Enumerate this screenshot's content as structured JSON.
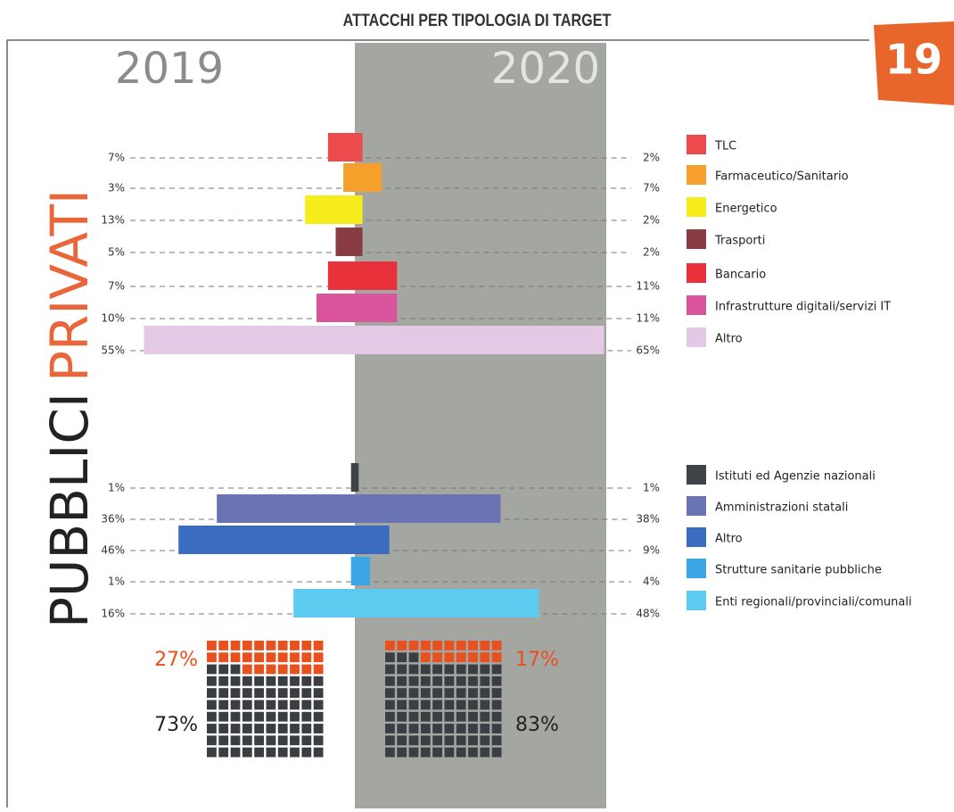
{
  "title": "ATTACCHI PER TIPOLOGIA DI TARGET",
  "page_number": "19",
  "years": [
    "2019",
    "2020"
  ],
  "chart_data": [
    {
      "type": "butterfly",
      "group": "PRIVATI",
      "categories": [
        "TLC",
        "Farmaceutico/Sanitario",
        "Energetico",
        "Trasporti",
        "Bancario",
        "Infrastrutture digitali/servizi IT",
        "Altro"
      ],
      "colors": [
        "#ec4b4e",
        "#f5a02a",
        "#f7ec1c",
        "#8a3c43",
        "#e8313a",
        "#d9549a",
        "#e3c9e6"
      ],
      "series": [
        {
          "values": [
            7,
            3,
            13,
            5,
            7,
            10,
            55
          ],
          "value_labels": [
            "7%",
            "3%",
            "13%",
            "5%",
            "7%",
            "10%",
            "55%"
          ]
        },
        {
          "values": [
            2,
            7,
            2,
            2,
            11,
            11,
            65
          ],
          "value_labels": [
            "2%",
            "7%",
            "2%",
            "2%",
            "11%",
            "11%",
            "65%"
          ]
        }
      ]
    },
    {
      "type": "butterfly",
      "group": "PUBBLICI",
      "categories": [
        "Istituti ed Agenzie nazionali",
        "Amministrazioni statali",
        "Altro",
        "Strutture sanitarie pubbliche",
        "Enti regionali/provinciali/comunali"
      ],
      "colors": [
        "#3d4347",
        "#6b74b3",
        "#3a6dbf",
        "#3aa6e3",
        "#5ccbef"
      ],
      "series": [
        {
          "values": [
            1,
            36,
            46,
            1,
            16
          ],
          "value_labels": [
            "1%",
            "36%",
            "46%",
            "1%",
            "16%"
          ]
        },
        {
          "values": [
            1,
            38,
            9,
            4,
            48
          ],
          "value_labels": [
            "1%",
            "38%",
            "9%",
            "4%",
            "48%"
          ]
        }
      ]
    },
    {
      "type": "waffle",
      "colors": [
        "#e8501e",
        "#3a3d42"
      ],
      "series": [
        {
          "values": [
            27,
            73
          ],
          "value_labels": [
            "27%",
            "73%"
          ]
        },
        {
          "values": [
            17,
            83
          ],
          "value_labels": [
            "17%",
            "83%"
          ]
        }
      ]
    }
  ]
}
